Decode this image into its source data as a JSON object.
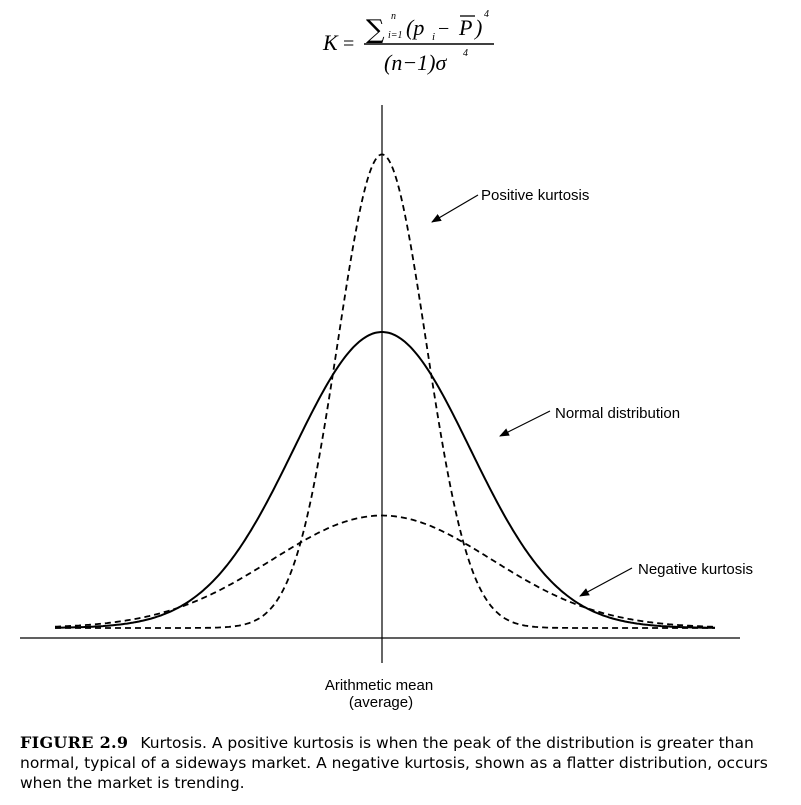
{
  "formula": {
    "lhs": "K",
    "equals": "=",
    "sum_symbol": "∑",
    "sum_upper": "n",
    "sum_lower": "i=1",
    "numerator_body": "(p",
    "numerator_sub": "i",
    "numerator_minus": " − ",
    "numerator_pbar": "P",
    "numerator_close": ")",
    "numerator_exp": "4",
    "denominator": "(n−1)σ",
    "denominator_exp": "4"
  },
  "labels": {
    "positive": "Positive kurtosis",
    "normal": "Normal distribution",
    "negative": "Negative kurtosis",
    "mean_line1": "Arithmetic mean",
    "mean_line2": "(average)"
  },
  "caption": {
    "number": "FIGURE 2.9",
    "text": "Kurtosis. A positive kurtosis is when the peak of the distribution is greater than normal, typical of a sideways market. A negative kurtosis, shown as a flatter distribution, occurs when the market is trending."
  },
  "curves": [
    {
      "key": "normal",
      "style": "solid",
      "peak": 1.0,
      "sigma": 1.0
    },
    {
      "key": "positive",
      "style": "dashed",
      "peak": 1.6,
      "sigma": 0.5
    },
    {
      "key": "negative",
      "style": "dashed",
      "peak": 0.38,
      "sigma": 1.25
    }
  ]
}
